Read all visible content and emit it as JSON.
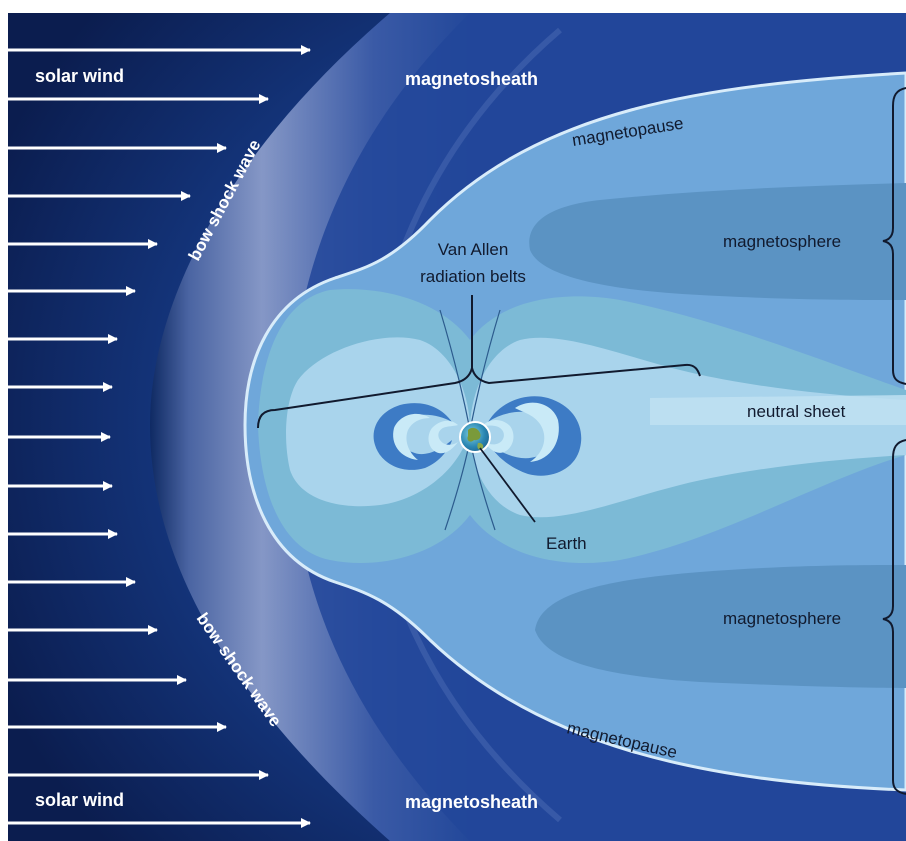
{
  "labels": {
    "solar_wind_top": "solar wind",
    "solar_wind_bottom": "solar wind",
    "bow_shock_top": "bow shock wave",
    "bow_shock_bottom": "bow shock wave",
    "magnetosheath_top": "magnetosheath",
    "magnetosheath_bottom": "magnetosheath",
    "magnetopause_top": "magnetopause",
    "magnetopause_bottom": "magnetopause",
    "magnetosphere_top": "magnetosphere",
    "magnetosphere_bottom": "magnetosphere",
    "van_allen_line1": "Van Allen",
    "van_allen_line2": "radiation belts",
    "neutral_sheet": "neutral sheet",
    "earth": "Earth"
  },
  "colors": {
    "space": "#0f2460",
    "arrow": "#ffffff",
    "magnetosphere_outer": "#6fa7da",
    "lobe": "#5b93c3",
    "inner_field": "#7cbad6",
    "inner_core": "#a9d4ec",
    "belt_outer": "#3d7bc5",
    "belt_inner": "#c9eaf7"
  },
  "icons": {
    "earth": "earth-globe-icon"
  }
}
